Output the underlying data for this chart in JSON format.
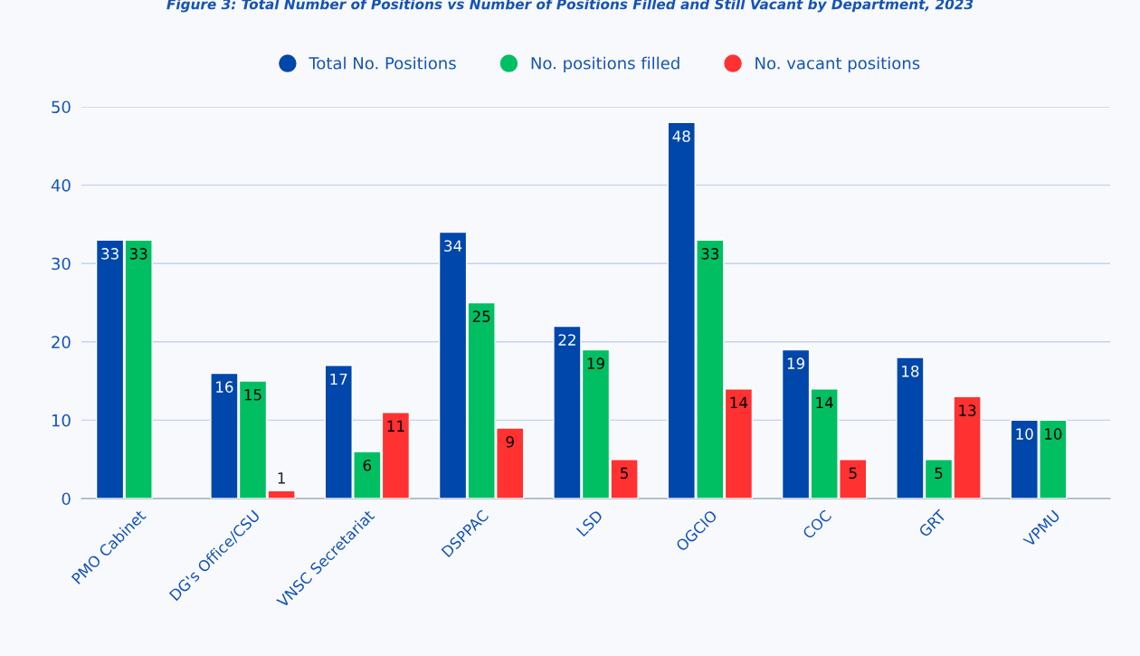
{
  "chart_data": {
    "type": "bar",
    "title": "Figure 3: Total Number of Positions vs Number of Positions Filled and Still Vacant by Department, 2023",
    "categories": [
      "PMO Cabinet",
      "DG's Office/CSU",
      "VNSC Secretariat",
      "DSPPAC",
      "LSD",
      "OGCIO",
      "COC",
      "GRT",
      "VPMU"
    ],
    "series": [
      {
        "name": "Total No. Positions",
        "color": "#0047ab",
        "values": [
          33,
          16,
          17,
          34,
          22,
          48,
          19,
          18,
          10
        ]
      },
      {
        "name": "No. positions filled",
        "color": "#00bf63",
        "values": [
          33,
          15,
          6,
          25,
          19,
          33,
          14,
          5,
          10
        ]
      },
      {
        "name": "No. vacant positions",
        "color": "#ff3131",
        "values": [
          null,
          1,
          11,
          9,
          5,
          14,
          5,
          13,
          null
        ]
      }
    ],
    "ylim": [
      0,
      50
    ],
    "yticks": [
      0,
      10,
      20,
      30,
      40,
      50
    ],
    "grid": "y",
    "legend": "top",
    "data_labels": true
  }
}
